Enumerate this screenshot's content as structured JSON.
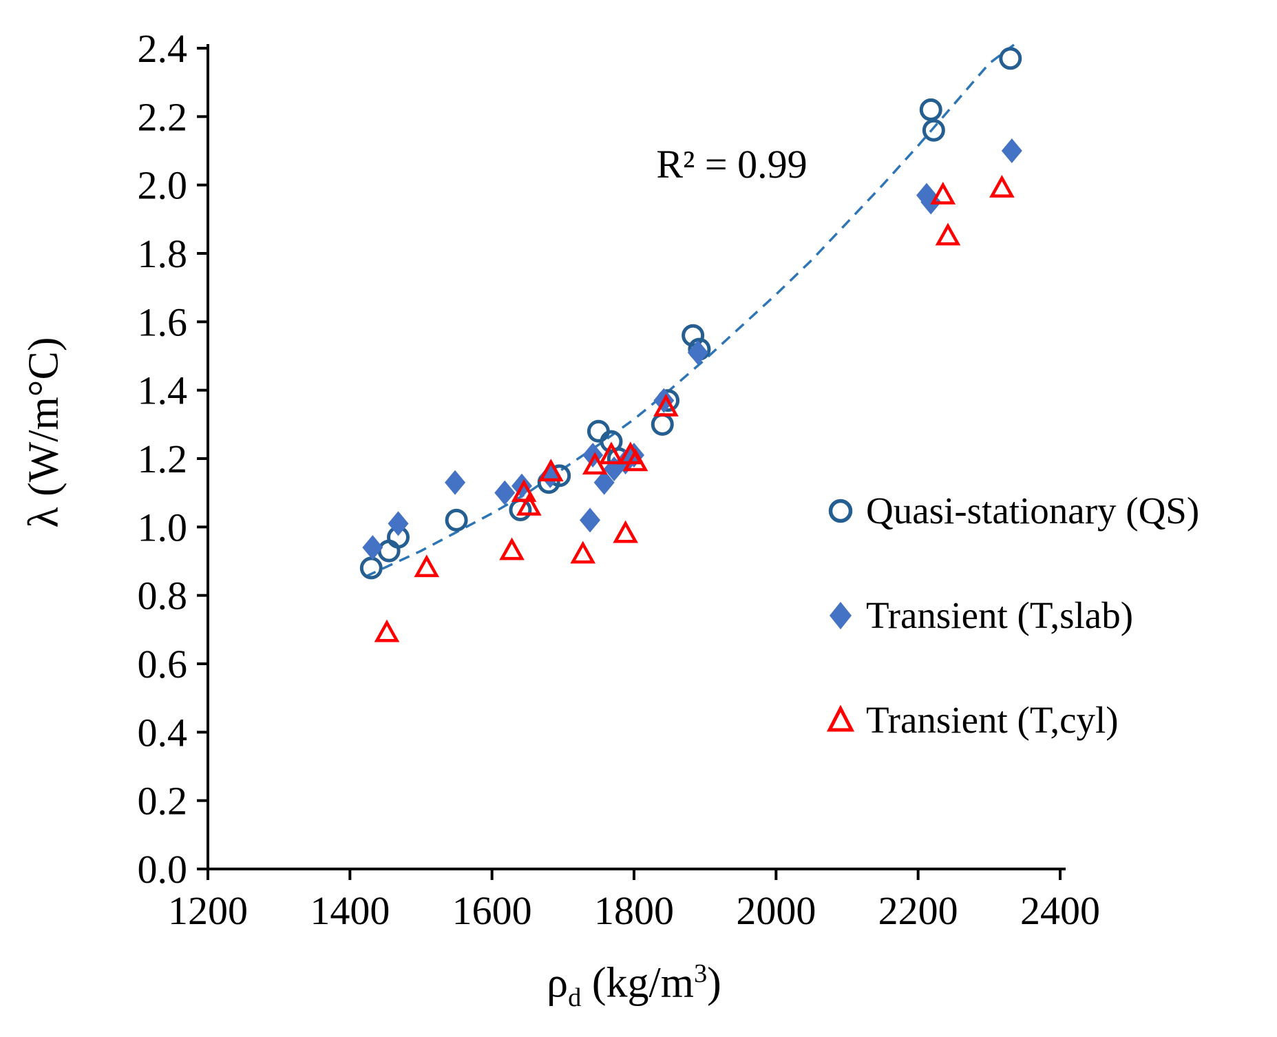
{
  "chart_data": {
    "type": "scatter",
    "title": "",
    "ylabel": "λ (W/m°C)",
    "x_label": {
      "symbol": "ρ",
      "subscript": "d",
      "unit_prefix": " (kg/m",
      "unit_sup": "3",
      "unit_suffix": ")"
    },
    "xlim": [
      1200,
      2400
    ],
    "ylim": [
      0.0,
      2.4
    ],
    "xticks": [
      1200,
      1400,
      1600,
      1800,
      2000,
      2200,
      2400
    ],
    "xtick_labels": [
      "1200",
      "1400",
      "1600",
      "1800",
      "2000",
      "2200",
      "2400"
    ],
    "yticks": [
      0,
      0.2,
      0.4,
      0.6,
      0.8,
      1.0,
      1.2,
      1.4,
      1.6,
      1.8,
      2.0,
      2.2,
      2.4
    ],
    "ytick_labels": [
      "0.0",
      "0.2",
      "0.4",
      "0.6",
      "0.8",
      "1.0",
      "1.2",
      "1.4",
      "1.6",
      "1.8",
      "2.0",
      "2.2",
      "2.4"
    ],
    "grid": false,
    "legend_position": "inside-right-middle",
    "annotation": "R² = 0.99",
    "series": [
      {
        "name": "Quasi-stationary (QS)",
        "marker": "open-circle",
        "color": "#255E91",
        "points": [
          [
            1430,
            0.88
          ],
          [
            1455,
            0.93
          ],
          [
            1468,
            0.97
          ],
          [
            1550,
            1.02
          ],
          [
            1640,
            1.05
          ],
          [
            1680,
            1.13
          ],
          [
            1695,
            1.15
          ],
          [
            1750,
            1.28
          ],
          [
            1768,
            1.25
          ],
          [
            1778,
            1.2
          ],
          [
            1840,
            1.3
          ],
          [
            1848,
            1.37
          ],
          [
            1883,
            1.56
          ],
          [
            1892,
            1.52
          ],
          [
            2218,
            2.22
          ],
          [
            2222,
            2.16
          ],
          [
            2330,
            2.37
          ]
        ]
      },
      {
        "name": "Transient (T,slab)",
        "marker": "filled-diamond",
        "color": "#4472C4",
        "points": [
          [
            1432,
            0.94
          ],
          [
            1468,
            1.01
          ],
          [
            1548,
            1.13
          ],
          [
            1618,
            1.1
          ],
          [
            1642,
            1.12
          ],
          [
            1682,
            1.15
          ],
          [
            1738,
            1.02
          ],
          [
            1742,
            1.21
          ],
          [
            1758,
            1.13
          ],
          [
            1772,
            1.17
          ],
          [
            1788,
            1.19
          ],
          [
            1800,
            1.21
          ],
          [
            1842,
            1.37
          ],
          [
            1890,
            1.51
          ],
          [
            2212,
            1.97
          ],
          [
            2218,
            1.95
          ],
          [
            2332,
            2.1
          ]
        ]
      },
      {
        "name": "Transient (T,cyl)",
        "marker": "open-triangle",
        "color": "#FF0000",
        "points": [
          [
            1452,
            0.69
          ],
          [
            1508,
            0.88
          ],
          [
            1628,
            0.93
          ],
          [
            1645,
            1.1
          ],
          [
            1652,
            1.06
          ],
          [
            1683,
            1.16
          ],
          [
            1728,
            0.92
          ],
          [
            1745,
            1.18
          ],
          [
            1768,
            1.21
          ],
          [
            1788,
            0.98
          ],
          [
            1795,
            1.21
          ],
          [
            1802,
            1.19
          ],
          [
            1845,
            1.35
          ],
          [
            2235,
            1.97
          ],
          [
            2242,
            1.85
          ],
          [
            2318,
            1.99
          ]
        ]
      }
    ],
    "trendline": {
      "style": "dashed",
      "color": "#2E75B6",
      "r_squared": 0.99,
      "points": [
        [
          1422,
          0.855
        ],
        [
          1500,
          0.93
        ],
        [
          1550,
          0.985
        ],
        [
          1600,
          1.04
        ],
        [
          1650,
          1.1
        ],
        [
          1700,
          1.17
        ],
        [
          1750,
          1.24
        ],
        [
          1800,
          1.315
        ],
        [
          1850,
          1.4
        ],
        [
          1900,
          1.49
        ],
        [
          1950,
          1.585
        ],
        [
          2000,
          1.68
        ],
        [
          2050,
          1.78
        ],
        [
          2100,
          1.89
        ],
        [
          2150,
          2.0
        ],
        [
          2200,
          2.115
        ],
        [
          2250,
          2.235
        ],
        [
          2300,
          2.355
        ],
        [
          2335,
          2.41
        ]
      ]
    }
  }
}
